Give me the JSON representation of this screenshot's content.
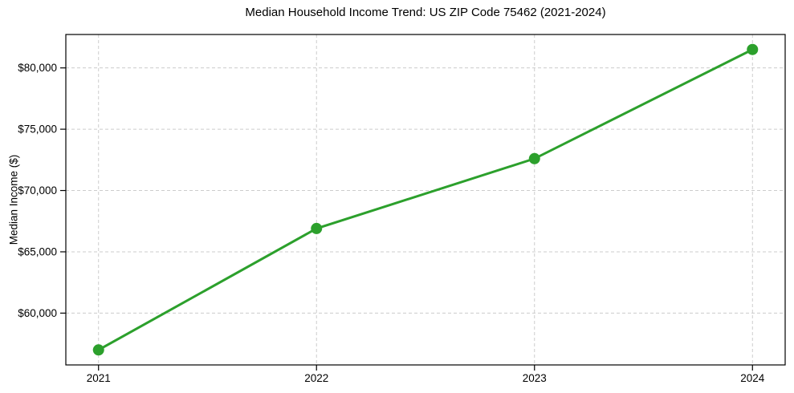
{
  "chart_data": {
    "type": "line",
    "title": "Median Household Income Trend: US ZIP Code 75462 (2021-2024)",
    "xlabel": "",
    "ylabel": "Median Income ($)",
    "x": [
      2021,
      2022,
      2023,
      2024
    ],
    "categories": [
      "2021",
      "2022",
      "2023",
      "2024"
    ],
    "values": [
      57000,
      66900,
      72600,
      81500
    ],
    "y_ticks": [
      60000,
      65000,
      70000,
      75000,
      80000
    ],
    "y_tick_labels": [
      "$60,000",
      "$65,000",
      "$70,000",
      "$75,000",
      "$80,000"
    ],
    "ylim": [
      55775,
      82725
    ],
    "xlim": [
      2020.85,
      2024.15
    ],
    "grid": true,
    "grid_style": "dashed",
    "legend": "none",
    "line_color": "#2ca02c",
    "marker": "circle",
    "marker_radius": 7,
    "line_width": 3,
    "grid_color": "#cccccc",
    "spine_color": "#000000",
    "text_color": "#000000",
    "background_color": "#ffffff"
  }
}
